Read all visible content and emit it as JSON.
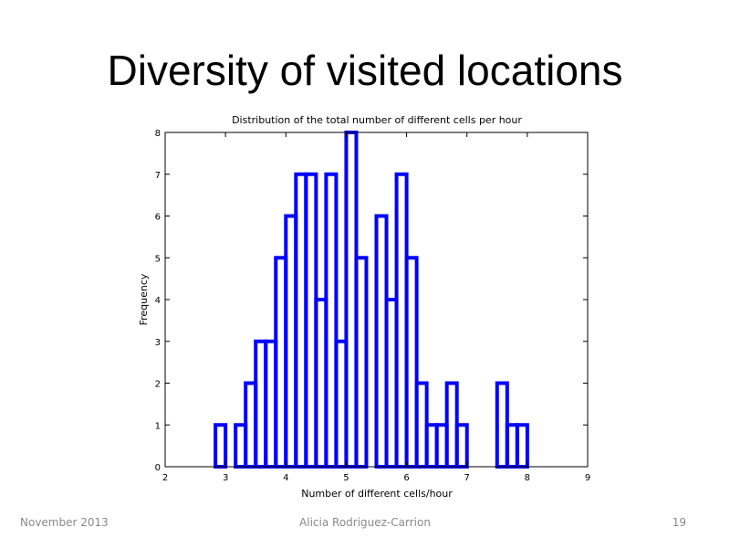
{
  "slide": {
    "title": "Diversity of visited locations",
    "footer_left": "November 2013",
    "footer_center": "Alicia Rodriguez-Carrion",
    "footer_right": "19"
  },
  "chart_data": {
    "type": "bar",
    "title": "Distribution of the total number of different cells per hour",
    "xlabel": "Number of different cells/hour",
    "ylabel": "Frequency",
    "xlim": [
      2,
      9
    ],
    "ylim": [
      0,
      8
    ],
    "xticks": [
      2,
      3,
      4,
      5,
      6,
      7,
      8,
      9
    ],
    "yticks": [
      0,
      1,
      2,
      3,
      4,
      5,
      6,
      7,
      8
    ],
    "bin_width": 0.1667,
    "bin_centers": [
      2.9167,
      3.0833,
      3.25,
      3.4167,
      3.5833,
      3.75,
      3.9167,
      4.0833,
      4.25,
      4.4167,
      4.5833,
      4.75,
      4.9167,
      5.0833,
      5.25,
      5.4167,
      5.5833,
      5.75,
      5.9167,
      6.0833,
      6.25,
      6.4167,
      6.5833,
      6.75,
      6.9167,
      7.0833,
      7.25,
      7.4167,
      7.5833,
      7.75,
      7.9167
    ],
    "values": [
      1,
      0,
      1,
      2,
      3,
      3,
      5,
      6,
      7,
      7,
      4,
      7,
      3,
      8,
      5,
      0,
      6,
      4,
      7,
      5,
      2,
      1,
      1,
      2,
      1,
      0,
      0,
      0,
      2,
      1,
      1
    ],
    "bar_edge_color": "#0000ff",
    "bar_fill": "none",
    "grid": false
  }
}
